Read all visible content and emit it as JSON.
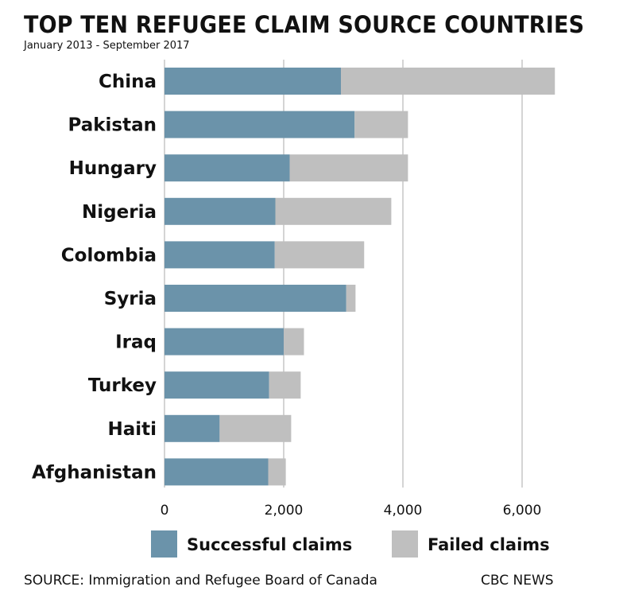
{
  "chart_data": {
    "type": "bar",
    "orientation": "horizontal",
    "stacked": true,
    "title": "TOP TEN REFUGEE CLAIM SOURCE COUNTRIES",
    "subtitle": "January 2013 - September 2017",
    "categories": [
      "China",
      "Pakistan",
      "Hungary",
      "Nigeria",
      "Colombia",
      "Syria",
      "Iraq",
      "Turkey",
      "Haiti",
      "Afghanistan"
    ],
    "series": [
      {
        "name": "Successful claims",
        "color": "#6b93aa",
        "values": [
          2960,
          3190,
          2100,
          1860,
          1850,
          3050,
          2000,
          1755,
          925,
          1740
        ]
      },
      {
        "name": "Failed claims",
        "color": "#bfbfbf",
        "values": [
          3590,
          895,
          1985,
          1945,
          1500,
          155,
          340,
          530,
          1200,
          295
        ]
      }
    ],
    "xlim": [
      0,
      6800
    ],
    "xticks": [
      0,
      2000,
      4000,
      6000
    ],
    "xtick_labels": [
      "0",
      "2,000",
      "4,000",
      "6,000"
    ],
    "grid": true,
    "legend_position": "bottom",
    "source": "SOURCE: Immigration and Refugee Board of Canada",
    "credit": "CBC NEWS"
  }
}
